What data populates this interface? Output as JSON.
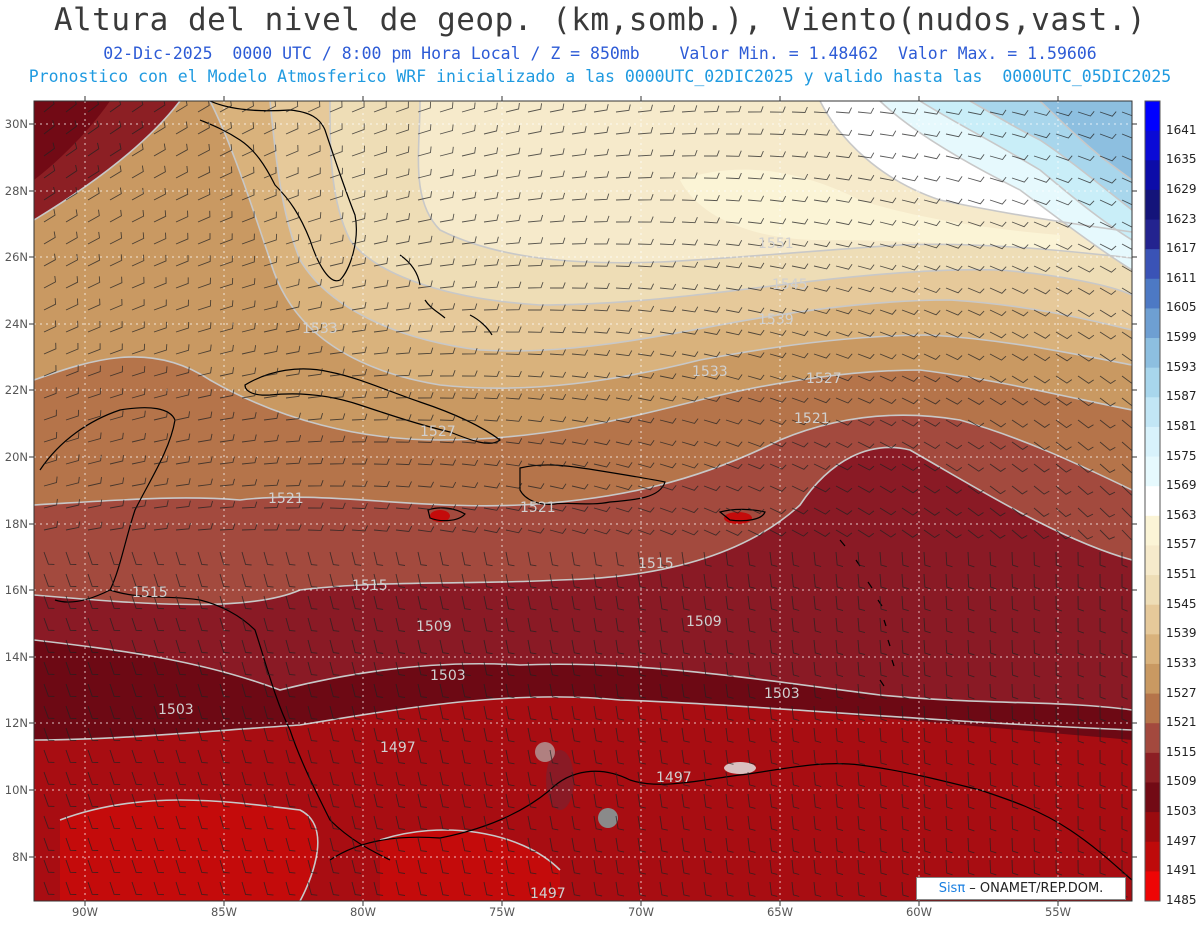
{
  "header": {
    "title": "Altura del nivel de geop. (km,somb.), Viento(nudos,vast.)",
    "line1": "02-Dic-2025  0000 UTC / 8:00 pm Hora Local / Z = 850mb    Valor Min. = 1.48462  Valor Max. = 1.59606",
    "line2": "Pronostico con el Modelo Atmosferico WRF inicializado a las 0000UTC_02DIC2025 y valido hasta las  0000UTC_05DIC2025"
  },
  "map": {
    "lat_labels": [
      "30N",
      "28N",
      "26N",
      "24N",
      "22N",
      "20N",
      "18N",
      "16N",
      "14N",
      "12N",
      "10N",
      "8N"
    ],
    "lon_labels": [
      "90W",
      "85W",
      "80W",
      "75W",
      "70W",
      "65W",
      "60W",
      "55W"
    ],
    "contour_labels": [
      "1551",
      "1545",
      "1539",
      "1533",
      "1533",
      "1527",
      "1521",
      "1527",
      "1521",
      "1521",
      "1515",
      "1515",
      "1515",
      "1509",
      "1509",
      "1503",
      "1503",
      "1503",
      "1497",
      "1497",
      "1497"
    ],
    "colors": {
      "sea_dark": "#7a0a17",
      "land_line": "#000000",
      "contour_line": "#c8c8c8"
    }
  },
  "colorbar": {
    "levels": [
      "1641",
      "1635",
      "1629",
      "1623",
      "1617",
      "1611",
      "1605",
      "1599",
      "1593",
      "1587",
      "1581",
      "1575",
      "1569",
      "1563",
      "1557",
      "1551",
      "1545",
      "1539",
      "1533",
      "1527",
      "1521",
      "1515",
      "1509",
      "1503",
      "1497",
      "1491",
      "1485"
    ],
    "colors": [
      "#0000ff",
      "#0a0ad6",
      "#0c0ca8",
      "#14147a",
      "#23238f",
      "#3a53b6",
      "#4d79c4",
      "#6e9fd2",
      "#8dbfe0",
      "#a8d6ec",
      "#c2e6f5",
      "#d8f2fb",
      "#e6f9fd",
      "#ffffff",
      "#fbf4d6",
      "#f6eacb",
      "#eeddb6",
      "#e6c99a",
      "#d9b27c",
      "#c99962",
      "#b5744a",
      "#a3493e",
      "#8c1f24",
      "#720a15",
      "#9a0b0f",
      "#be0a0a",
      "#ee0505"
    ]
  },
  "credit": {
    "brand": "Sisπ",
    "text": " – ONAMET/REP.DOM."
  }
}
